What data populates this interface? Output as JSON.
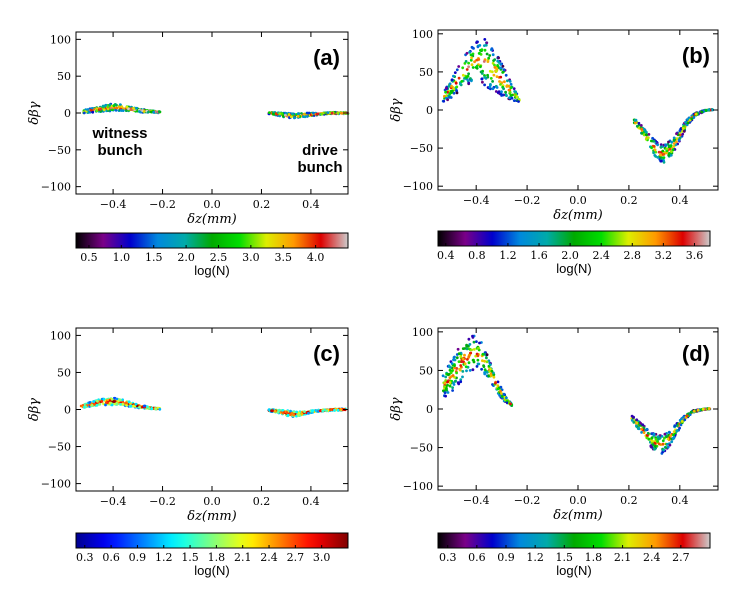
{
  "chart_data": [
    {
      "type": "scatter",
      "panel_label": "(a)",
      "xlabel": "δz(mm)",
      "ylabel": "δβγ",
      "xlim": [
        -0.55,
        0.55
      ],
      "ylim": [
        -110,
        110
      ],
      "xticks": [
        "−0.4",
        "−0.2",
        "0.0",
        "0.2",
        "0.4"
      ],
      "yticks": [
        "100",
        "50",
        "0",
        "−50",
        "−100"
      ],
      "annotations": [
        {
          "text_lines": [
            "witness",
            "bunch"
          ]
        },
        {
          "text_lines": [
            "drive",
            "bunch"
          ]
        }
      ],
      "colorbar": {
        "label": "log(N)",
        "ticks": [
          "0.5",
          "1.0",
          "1.5",
          "2.0",
          "2.5",
          "3.0",
          "3.5",
          "4.0"
        ],
        "range": [
          0.3,
          4.5
        ],
        "colormap": "nipy_spectral"
      },
      "series": [
        {
          "name": "witness bunch",
          "x": [
            -0.52,
            -0.48,
            -0.44,
            -0.4,
            -0.36,
            -0.32,
            -0.28,
            -0.24,
            -0.21
          ],
          "y_center": [
            2,
            4,
            6,
            8,
            7,
            5,
            3,
            2,
            1
          ],
          "spread": [
            2,
            3,
            4,
            5,
            4,
            3,
            2,
            1,
            1
          ]
        },
        {
          "name": "drive bunch",
          "x": [
            0.23,
            0.26,
            0.3,
            0.33,
            0.36,
            0.4,
            0.44,
            0.48,
            0.52,
            0.55
          ],
          "y_center": [
            0,
            -1,
            -3,
            -4,
            -3,
            -2,
            -1,
            0,
            0,
            0
          ],
          "spread": [
            1,
            2,
            3,
            3,
            3,
            2,
            1,
            1,
            1,
            1
          ]
        }
      ]
    },
    {
      "type": "scatter",
      "panel_label": "(b)",
      "xlabel": "δz(mm)",
      "ylabel": "δβγ",
      "xlim": [
        -0.55,
        0.55
      ],
      "ylim": [
        -105,
        105
      ],
      "xticks": [
        "−0.4",
        "−0.2",
        "0.0",
        "0.2",
        "0.4"
      ],
      "yticks": [
        "100",
        "50",
        "0",
        "−50",
        "−100"
      ],
      "colorbar": {
        "label": "log(N)",
        "ticks": [
          "0.4",
          "0.8",
          "1.2",
          "1.6",
          "2.0",
          "2.4",
          "2.8",
          "3.2",
          "3.6"
        ],
        "range": [
          0.3,
          3.8
        ],
        "colormap": "nipy_spectral"
      },
      "series": [
        {
          "name": "witness bunch",
          "x": [
            -0.53,
            -0.49,
            -0.45,
            -0.41,
            -0.38,
            -0.35,
            -0.31,
            -0.27,
            -0.23
          ],
          "y_top": [
            22,
            45,
            70,
            88,
            96,
            90,
            68,
            42,
            15
          ],
          "y_bottom": [
            10,
            18,
            30,
            38,
            35,
            28,
            20,
            14,
            10
          ]
        },
        {
          "name": "drive bunch",
          "x": [
            0.22,
            0.25,
            0.28,
            0.31,
            0.34,
            0.37,
            0.4,
            0.43,
            0.46,
            0.5,
            0.53
          ],
          "y_top": [
            -10,
            -20,
            -32,
            -42,
            -45,
            -38,
            -25,
            -12,
            -4,
            0,
            1
          ],
          "y_bottom": [
            -18,
            -32,
            -50,
            -66,
            -72,
            -60,
            -40,
            -20,
            -8,
            -1,
            0
          ]
        }
      ]
    },
    {
      "type": "scatter",
      "panel_label": "(c)",
      "xlabel": "δz(mm)",
      "ylabel": "δβγ",
      "xlim": [
        -0.55,
        0.55
      ],
      "ylim": [
        -110,
        110
      ],
      "xticks": [
        "−0.4",
        "−0.2",
        "0.0",
        "0.2",
        "0.4"
      ],
      "yticks": [
        "100",
        "50",
        "0",
        "−50",
        "−100"
      ],
      "colorbar": {
        "label": "log(N)",
        "ticks": [
          "0.3",
          "0.6",
          "0.9",
          "1.2",
          "1.5",
          "1.8",
          "2.1",
          "2.4",
          "2.7",
          "3.0"
        ],
        "range": [
          0.2,
          3.3
        ],
        "colormap": "jet"
      },
      "series": [
        {
          "name": "witness bunch",
          "x": [
            -0.53,
            -0.49,
            -0.45,
            -0.41,
            -0.37,
            -0.33,
            -0.29,
            -0.25,
            -0.21
          ],
          "y_center": [
            4,
            7,
            10,
            11,
            10,
            7,
            4,
            2,
            1
          ],
          "spread": [
            2,
            3,
            4,
            5,
            4,
            3,
            2,
            1,
            1
          ]
        },
        {
          "name": "drive bunch",
          "x": [
            0.23,
            0.26,
            0.29,
            0.32,
            0.35,
            0.38,
            0.42,
            0.46,
            0.5,
            0.54
          ],
          "y_center": [
            -1,
            -2,
            -4,
            -6,
            -6,
            -4,
            -2,
            -1,
            0,
            0
          ],
          "spread": [
            1,
            2,
            3,
            4,
            3,
            2,
            1,
            1,
            1,
            1
          ]
        }
      ]
    },
    {
      "type": "scatter",
      "panel_label": "(d)",
      "xlabel": "δz(mm)",
      "ylabel": "δβγ",
      "xlim": [
        -0.55,
        0.55
      ],
      "ylim": [
        -105,
        105
      ],
      "xticks": [
        "−0.4",
        "−0.2",
        "0.0",
        "0.2",
        "0.4"
      ],
      "yticks": [
        "100",
        "50",
        "0",
        "−50",
        "−100"
      ],
      "colorbar": {
        "label": "log(N)",
        "ticks": [
          "0.3",
          "0.6",
          "0.9",
          "1.2",
          "1.5",
          "1.8",
          "2.1",
          "2.4",
          "2.7"
        ],
        "range": [
          0.2,
          3.0
        ],
        "colormap": "nipy_spectral"
      },
      "series": [
        {
          "name": "witness bunch",
          "x": [
            -0.53,
            -0.5,
            -0.47,
            -0.44,
            -0.41,
            -0.38,
            -0.35,
            -0.32,
            -0.29,
            -0.26
          ],
          "y_top": [
            45,
            62,
            80,
            92,
            97,
            88,
            65,
            40,
            20,
            6
          ],
          "y_bottom": [
            15,
            20,
            30,
            40,
            50,
            50,
            38,
            22,
            10,
            4
          ]
        },
        {
          "name": "drive bunch",
          "x": [
            0.21,
            0.24,
            0.27,
            0.3,
            0.33,
            0.36,
            0.39,
            0.42,
            0.45,
            0.49,
            0.52
          ],
          "y_top": [
            -8,
            -16,
            -25,
            -32,
            -34,
            -28,
            -18,
            -8,
            -2,
            0,
            1
          ],
          "y_bottom": [
            -15,
            -28,
            -42,
            -55,
            -58,
            -48,
            -30,
            -14,
            -5,
            -1,
            0
          ]
        }
      ]
    }
  ]
}
